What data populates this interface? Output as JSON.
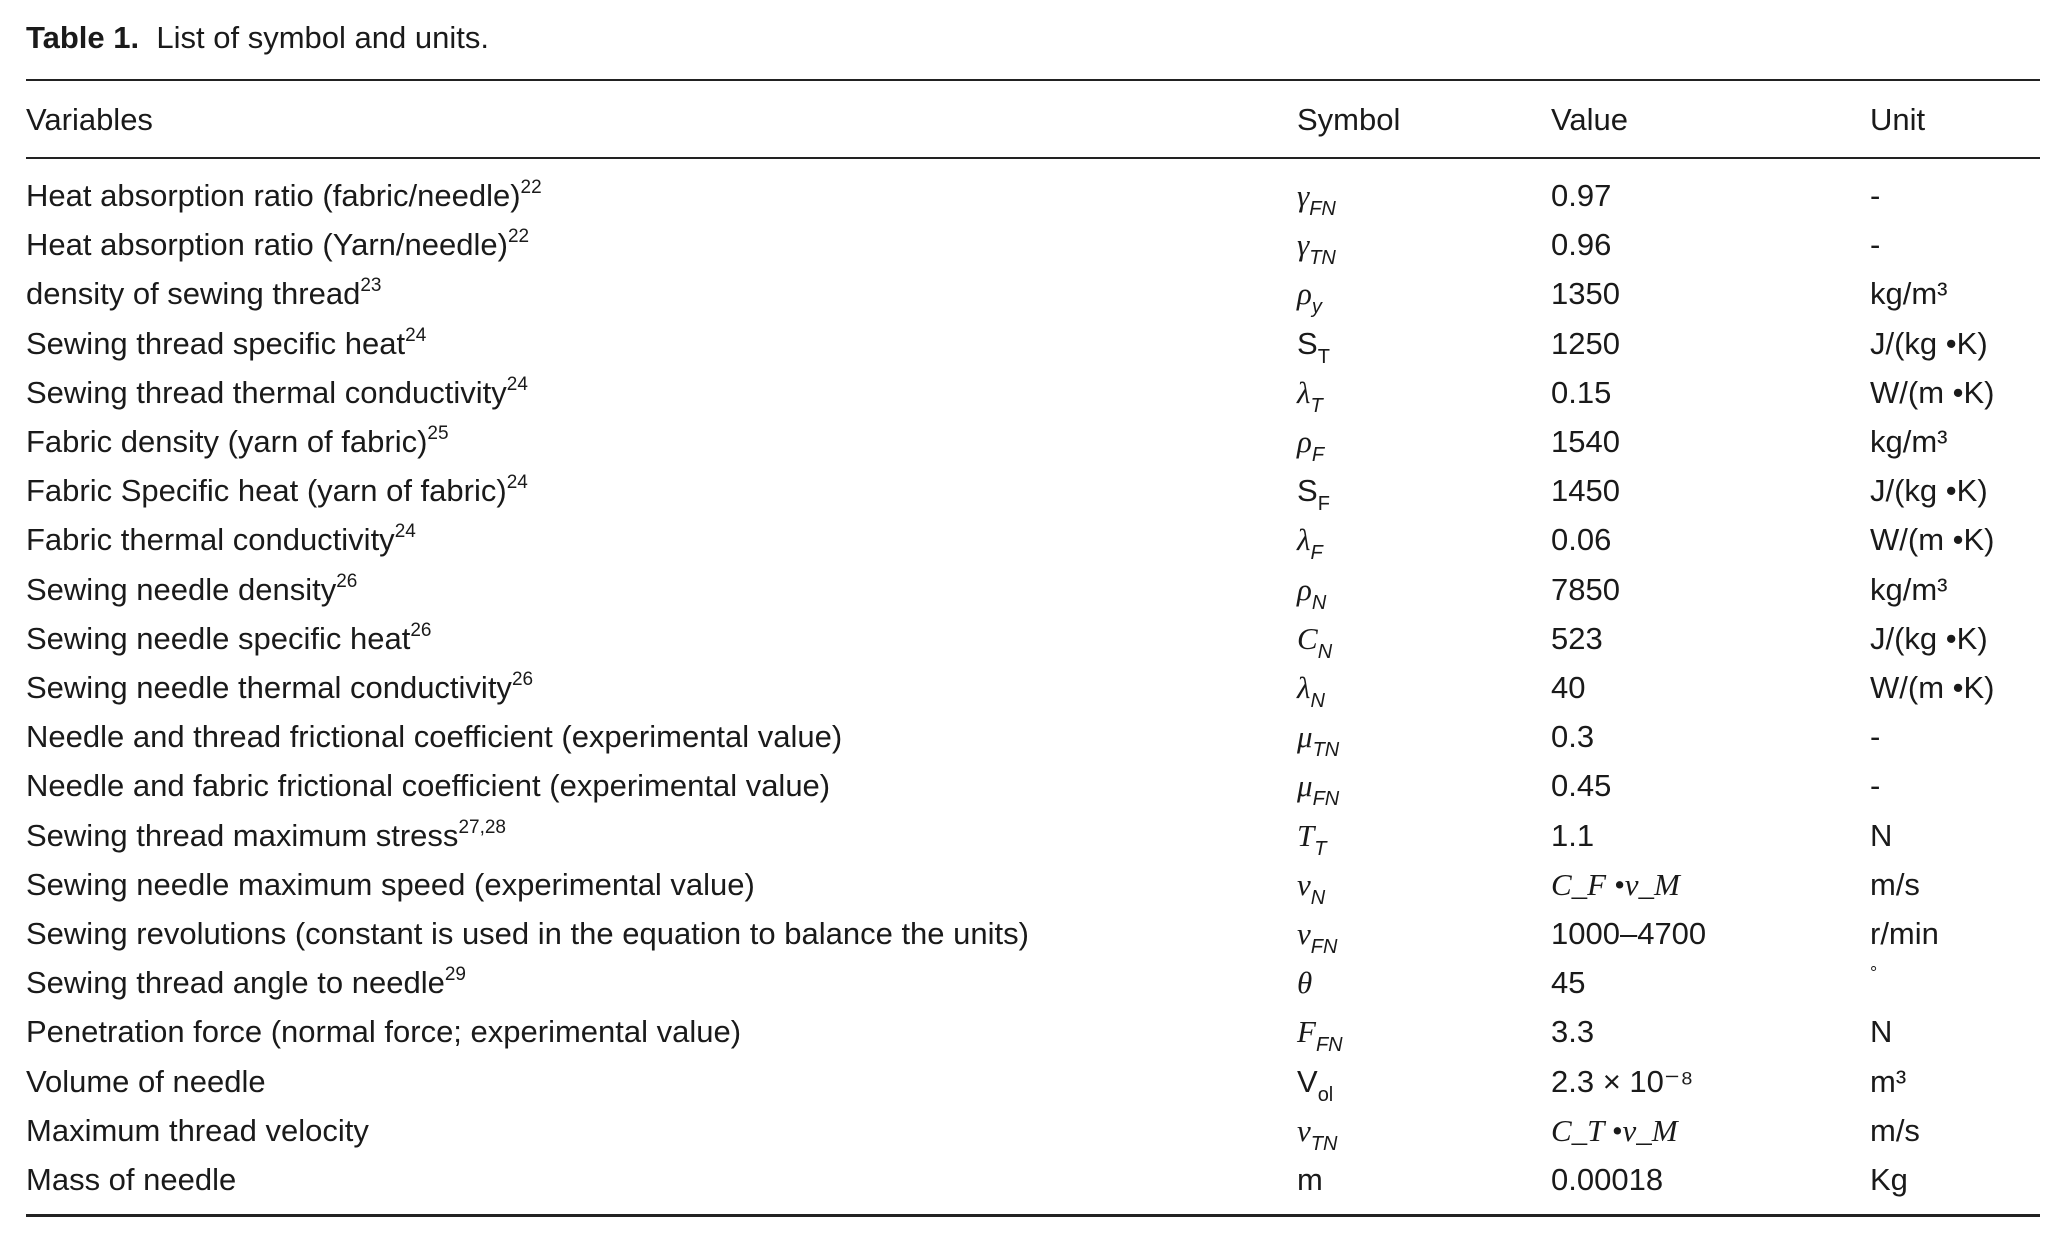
{
  "caption": {
    "label": "Table 1.",
    "text": "List of symbol and units."
  },
  "headers": [
    "Variables",
    "Symbol",
    "Value",
    "Unit"
  ],
  "rows": [
    {
      "variable": "Heat absorption ratio (fabric/needle)",
      "ref": "22",
      "symbol": "γ",
      "symbol_sub": "FN",
      "value": "0.97",
      "unit": "-"
    },
    {
      "variable": "Heat absorption ratio (Yarn/needle)",
      "ref": "22",
      "symbol": "γ",
      "symbol_sub": "TN",
      "value": "0.96",
      "unit": "-"
    },
    {
      "variable": "density of sewing thread",
      "ref": "23",
      "symbol": "ρ",
      "symbol_sub": "y",
      "value": "1350",
      "unit": "kg/m³"
    },
    {
      "variable": "Sewing thread specific heat",
      "ref": "24",
      "symbol": "S",
      "symbol_sub": "T",
      "value": "1250",
      "unit": "J/(kg •K)"
    },
    {
      "variable": "Sewing thread thermal conductivity",
      "ref": "24",
      "symbol": "λ",
      "symbol_sub": "T",
      "value": "0.15",
      "unit": "W/(m •K)"
    },
    {
      "variable": "Fabric density (yarn of fabric)",
      "ref": "25",
      "symbol": "ρ",
      "symbol_sub": "F",
      "value": "1540",
      "unit": "kg/m³"
    },
    {
      "variable": "Fabric Specific heat (yarn of fabric)",
      "ref": "24",
      "symbol": "S",
      "symbol_sub": "F",
      "value": "1450",
      "unit": "J/(kg •K)"
    },
    {
      "variable": "Fabric thermal conductivity",
      "ref": "24",
      "symbol": "λ",
      "symbol_sub": "F",
      "value": "0.06",
      "unit": "W/(m •K)"
    },
    {
      "variable": "Sewing needle density",
      "ref": "26",
      "symbol": "ρ",
      "symbol_sub": "N",
      "value": "7850",
      "unit": "kg/m³"
    },
    {
      "variable": "Sewing needle specific heat",
      "ref": "26",
      "symbol": "C",
      "symbol_sub": "N",
      "value": "523",
      "unit": "J/(kg •K)"
    },
    {
      "variable": "Sewing needle thermal conductivity",
      "ref": "26",
      "symbol": "λ",
      "symbol_sub": "N",
      "value": "40",
      "unit": "W/(m •K)"
    },
    {
      "variable": "Needle and thread frictional coefficient (experimental value)",
      "ref": "",
      "symbol": "μ",
      "symbol_sub": "TN",
      "value": "0.3",
      "unit": "-"
    },
    {
      "variable": "Needle and fabric frictional coefficient (experimental value)",
      "ref": "",
      "symbol": "μ",
      "symbol_sub": "FN",
      "value": "0.45",
      "unit": "-"
    },
    {
      "variable": "Sewing thread maximum stress",
      "ref": "27,28",
      "symbol": "T",
      "symbol_sub": "T",
      "value": "1.1",
      "unit": "N"
    },
    {
      "variable": "Sewing needle maximum speed (experimental value)",
      "ref": "",
      "symbol": "ν",
      "symbol_sub": "N",
      "value": "C_F •ν_M",
      "unit": "m/s"
    },
    {
      "variable": "Sewing revolutions (constant is used in the equation to balance the units)",
      "ref": "",
      "symbol": "ν",
      "symbol_sub": "FN",
      "value": "1000–4700",
      "unit": "r/min"
    },
    {
      "variable": "Sewing thread angle to needle",
      "ref": "29",
      "symbol": "θ",
      "symbol_sub": "",
      "value": "45",
      "unit": "°"
    },
    {
      "variable": "Penetration force (normal force; experimental value)",
      "ref": "",
      "symbol": "F",
      "symbol_sub": "FN",
      "value": "3.3",
      "unit": "N"
    },
    {
      "variable": "Volume of needle",
      "ref": "",
      "symbol": "V",
      "symbol_sub": "ol",
      "value": "2.3 × 10⁻⁸",
      "unit": "m³"
    },
    {
      "variable": "Maximum thread velocity",
      "ref": "",
      "symbol": "ν",
      "symbol_sub": "TN",
      "value": "C_T •ν_M",
      "unit": "m/s"
    },
    {
      "variable": "Mass of needle",
      "ref": "",
      "symbol": "m",
      "symbol_sub": "",
      "value": "0.00018",
      "unit": "Kg"
    }
  ]
}
